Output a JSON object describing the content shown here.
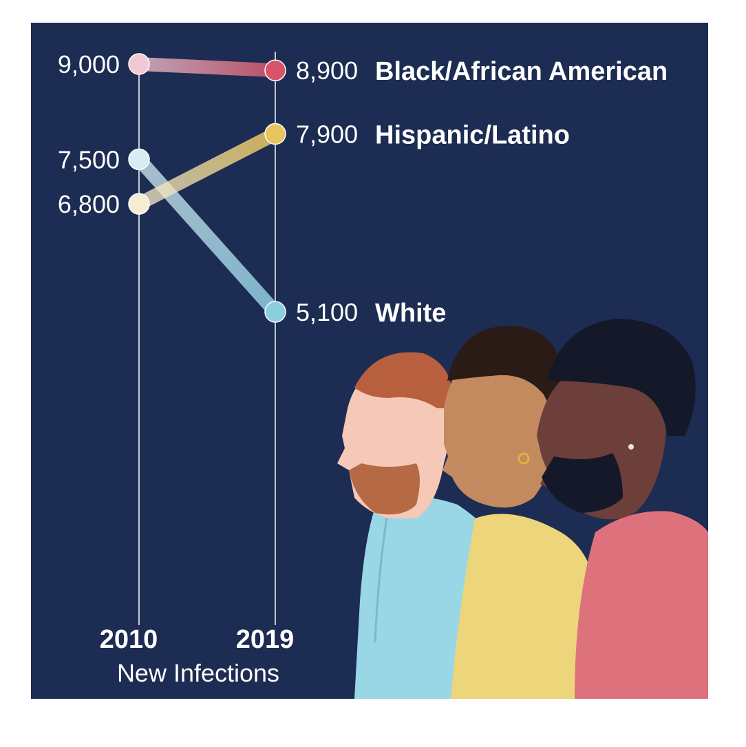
{
  "chart_data": {
    "type": "line",
    "chart_kind": "slope",
    "x": [
      "2010",
      "2019"
    ],
    "xlabel": "New Infections",
    "ylim": [
      5000,
      9200
    ],
    "series": [
      {
        "name": "Black/African American",
        "values": [
          9000,
          8900
        ],
        "labels": [
          "9,000",
          "8,900"
        ],
        "color_start": "#f2c9d2",
        "color_end": "#d9546a"
      },
      {
        "name": "Hispanic/Latino",
        "values": [
          6800,
          7900
        ],
        "labels": [
          "6,800",
          "7,900"
        ],
        "color_start": "#f6ecd1",
        "color_end": "#e8c55c"
      },
      {
        "name": "White",
        "values": [
          7500,
          5100
        ],
        "labels": [
          "7,500",
          "5,100"
        ],
        "color_start": "#d7ecf3",
        "color_end": "#8ccde0"
      }
    ],
    "background": "#1c2c52"
  }
}
